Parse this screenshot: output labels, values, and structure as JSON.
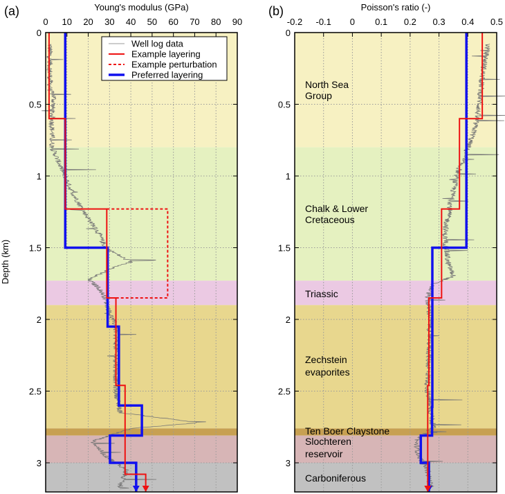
{
  "y_axis_label": "Depth (km)",
  "formations": [
    {
      "name": "North Sea Group",
      "lines": [
        "North Sea",
        "Group"
      ],
      "top": 0,
      "bottom": 0.8,
      "color": "#f7f1c2"
    },
    {
      "name": "Chalk & Lower Cretaceous",
      "lines": [
        "Chalk & Lower",
        "Cretaceous"
      ],
      "top": 0.8,
      "bottom": 1.73,
      "color": "#e5f1c0"
    },
    {
      "name": "Triassic",
      "lines": [
        "Triassic"
      ],
      "top": 1.73,
      "bottom": 1.9,
      "color": "#ebc9e3"
    },
    {
      "name": "Zechstein evaporites",
      "lines": [
        "Zechstein",
        "evaporites"
      ],
      "top": 1.9,
      "bottom": 2.76,
      "color": "#e8d78e"
    },
    {
      "name": "Ten Boer Claystone",
      "lines": [
        "Ten Boer Claystone"
      ],
      "top": 2.76,
      "bottom": 2.81,
      "color": "#c7a052"
    },
    {
      "name": "Slochteren reservoir",
      "lines": [
        "Slochteren",
        "reservoir"
      ],
      "top": 2.81,
      "bottom": 3.0,
      "color": "#d7b5b6"
    },
    {
      "name": "Carboniferous",
      "lines": [
        "Carboniferous"
      ],
      "top": 3.0,
      "bottom": 3.2,
      "color": "#c1c1c1"
    }
  ],
  "legend": {
    "placement": "top-right of panel (a)",
    "entries": [
      {
        "label": "Well log data",
        "color": "#9a9a9a",
        "style": "solid-thin"
      },
      {
        "label": "Example layering",
        "color": "#ee1111",
        "style": "solid"
      },
      {
        "label": "Example perturbation",
        "color": "#ee1111",
        "style": "dashed"
      },
      {
        "label": "Preferred layering",
        "color": "#1111ee",
        "style": "solid-thick"
      }
    ]
  },
  "chart_data": [
    {
      "panel": "(a)",
      "type": "line",
      "title": "Young's modulus (GPa)",
      "xlim": [
        0,
        90
      ],
      "xticks": [
        0,
        10,
        20,
        30,
        40,
        50,
        60,
        70,
        80,
        90
      ],
      "ylim": [
        0,
        3.2
      ],
      "yticks": [
        0,
        0.5,
        1,
        1.5,
        2,
        2.5,
        3
      ],
      "y_inverted": true,
      "grid": true,
      "well_log_trend": [
        [
          0.08,
          2
        ],
        [
          0.4,
          2
        ],
        [
          0.45,
          4
        ],
        [
          0.55,
          3
        ],
        [
          0.8,
          3
        ],
        [
          0.9,
          6
        ],
        [
          1.1,
          12
        ],
        [
          1.25,
          18
        ],
        [
          1.4,
          25
        ],
        [
          1.5,
          28
        ],
        [
          1.6,
          40
        ],
        [
          1.65,
          30
        ],
        [
          1.72,
          20
        ],
        [
          1.78,
          25
        ],
        [
          1.85,
          28
        ],
        [
          1.95,
          30
        ],
        [
          2.05,
          33
        ],
        [
          2.5,
          33
        ],
        [
          2.65,
          35
        ],
        [
          2.72,
          72
        ],
        [
          2.76,
          40
        ],
        [
          2.85,
          22
        ],
        [
          2.95,
          28
        ],
        [
          3.05,
          38
        ],
        [
          3.15,
          35
        ]
      ],
      "example_layering": [
        [
          0,
          0.6,
          1.6
        ],
        [
          0.6,
          1.23,
          9.2
        ],
        [
          1.23,
          1.85,
          28.7
        ],
        [
          1.85,
          2.46,
          33
        ],
        [
          2.46,
          3.08,
          37.3
        ],
        [
          3.08,
          3.2,
          47
        ]
      ],
      "example_perturbation": [
        [
          1.23,
          1.85,
          57.3
        ]
      ],
      "preferred_layering": [
        [
          0,
          1.5,
          9.2
        ],
        [
          1.5,
          2.05,
          29.1
        ],
        [
          2.05,
          2.6,
          34.4
        ],
        [
          2.6,
          2.81,
          45.2
        ],
        [
          2.81,
          3.0,
          30.2
        ],
        [
          3.0,
          3.2,
          42.5
        ]
      ]
    },
    {
      "panel": "(b)",
      "type": "line",
      "title": "Poisson's ratio (-)",
      "xlim": [
        -0.2,
        0.5
      ],
      "xticks": [
        -0.2,
        -0.1,
        0,
        0.1,
        0.2,
        0.3,
        0.4,
        0.5
      ],
      "ylim": [
        0,
        3.2
      ],
      "yticks": [
        0,
        0.5,
        1,
        1.5,
        2,
        2.5,
        3
      ],
      "y_inverted": true,
      "grid": true,
      "well_log_trend": [
        [
          0.08,
          0.47
        ],
        [
          0.3,
          0.45
        ],
        [
          0.5,
          0.44
        ],
        [
          0.7,
          0.42
        ],
        [
          0.8,
          0.4
        ],
        [
          1.0,
          0.36
        ],
        [
          1.2,
          0.34
        ],
        [
          1.4,
          0.32
        ],
        [
          1.6,
          0.33
        ],
        [
          1.7,
          0.35
        ],
        [
          1.75,
          0.28
        ],
        [
          1.85,
          0.26
        ],
        [
          2.0,
          0.27
        ],
        [
          2.5,
          0.26
        ],
        [
          2.75,
          0.28
        ],
        [
          2.85,
          0.22
        ],
        [
          2.95,
          0.23
        ],
        [
          3.05,
          0.26
        ],
        [
          3.15,
          0.27
        ]
      ],
      "example_layering": [
        [
          0,
          0.6,
          0.45
        ],
        [
          0.6,
          1.23,
          0.371
        ],
        [
          1.23,
          1.85,
          0.309
        ],
        [
          1.85,
          2.46,
          0.265
        ],
        [
          2.46,
          3.2,
          0.261
        ]
      ],
      "example_perturbation": [],
      "preferred_layering": [
        [
          0,
          1.5,
          0.395
        ],
        [
          1.5,
          2.61,
          0.277
        ],
        [
          2.61,
          2.81,
          0.276
        ],
        [
          2.81,
          3.0,
          0.237
        ],
        [
          3.0,
          3.2,
          0.265
        ]
      ]
    }
  ]
}
